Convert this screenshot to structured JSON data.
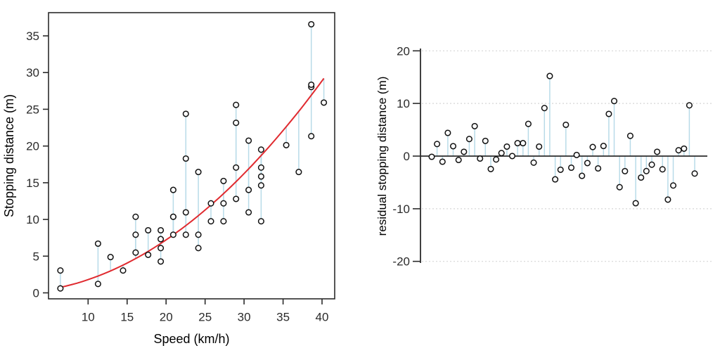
{
  "figure": {
    "description": "Two-panel statistical graphic: stopping distance vs speed with quadratic fit and residual segments (left), residuals by observation (right)",
    "background": "#ffffff"
  },
  "colors": {
    "ink": "#2b2b2b",
    "marker_stroke": "#111111",
    "marker_fill": "#ffffff",
    "fit_curve": "#e02a2f",
    "residual_segment": "#b8dbe8",
    "gridline": "#d6d6d6"
  },
  "chart_data": [
    {
      "id": "fit-panel",
      "type": "scatter",
      "title": "",
      "xlabel": "Speed (km/h)",
      "ylabel": "Stopping distance (m)",
      "x_ticks": [
        10,
        15,
        20,
        25,
        30,
        35,
        40
      ],
      "y_ticks": [
        0,
        5,
        10,
        15,
        20,
        25,
        30,
        35
      ],
      "xlim": [
        4.92,
        41.62
      ],
      "ylim": [
        -0.81,
        38.16
      ],
      "grid": false,
      "legend": "none",
      "marker": "open-circle",
      "fit_curve": {
        "type": "quadratic-through-origin",
        "formula": "y = 0.018049 * x^2",
        "coef": 0.018049,
        "x_start": 6.44,
        "x_end": 40.23
      },
      "residual_segments": true,
      "points": [
        [
          6.44,
          0.61
        ],
        [
          6.44,
          3.05
        ],
        [
          11.27,
          1.22
        ],
        [
          11.27,
          6.71
        ],
        [
          12.87,
          4.88
        ],
        [
          14.48,
          3.05
        ],
        [
          16.09,
          5.49
        ],
        [
          16.09,
          7.92
        ],
        [
          16.09,
          10.36
        ],
        [
          17.7,
          5.18
        ],
        [
          17.7,
          8.53
        ],
        [
          19.31,
          4.27
        ],
        [
          19.31,
          6.1
        ],
        [
          19.31,
          7.32
        ],
        [
          19.31,
          8.53
        ],
        [
          20.92,
          7.92
        ],
        [
          20.92,
          10.36
        ],
        [
          20.92,
          10.36
        ],
        [
          20.92,
          14.02
        ],
        [
          22.53,
          7.92
        ],
        [
          22.53,
          10.97
        ],
        [
          22.53,
          18.29
        ],
        [
          22.53,
          24.38
        ],
        [
          24.14,
          6.1
        ],
        [
          24.14,
          7.92
        ],
        [
          24.14,
          16.46
        ],
        [
          25.75,
          9.75
        ],
        [
          25.75,
          12.19
        ],
        [
          27.36,
          9.75
        ],
        [
          27.36,
          12.19
        ],
        [
          27.36,
          15.24
        ],
        [
          28.97,
          12.8
        ],
        [
          28.97,
          17.07
        ],
        [
          28.97,
          23.16
        ],
        [
          28.97,
          25.6
        ],
        [
          30.58,
          10.97
        ],
        [
          30.58,
          14.02
        ],
        [
          30.58,
          20.73
        ],
        [
          32.19,
          9.75
        ],
        [
          32.19,
          14.63
        ],
        [
          32.19,
          15.85
        ],
        [
          32.19,
          17.07
        ],
        [
          32.19,
          19.51
        ],
        [
          35.41,
          20.12
        ],
        [
          37.01,
          16.46
        ],
        [
          38.62,
          21.34
        ],
        [
          38.62,
          28.04
        ],
        [
          38.62,
          28.35
        ],
        [
          38.62,
          36.58
        ],
        [
          40.23,
          25.91
        ]
      ]
    },
    {
      "id": "residual-panel",
      "type": "stem",
      "title": "",
      "xlabel": "",
      "ylabel": "residual stopping distance (m)",
      "y_ticks": [
        -20,
        -10,
        0,
        10,
        20
      ],
      "ylim": [
        -21.5,
        20.3
      ],
      "x_axis": "observation index 1-50, unlabeled",
      "grid": "horizontal dashed at -20, -10, 10, 20",
      "zero_line": true,
      "marker": "open-circle",
      "values": [
        -0.14,
        2.3,
        -1.07,
        4.41,
        1.88,
        -0.74,
        0.81,
        3.25,
        5.69,
        -0.47,
        2.88,
        -2.46,
        -0.64,
        0.58,
        1.8,
        0.02,
        2.46,
        2.46,
        6.12,
        -1.24,
        1.81,
        9.13,
        15.22,
        -4.42,
        -2.59,
        5.94,
        -2.21,
        0.22,
        -3.76,
        -1.32,
        1.73,
        -2.34,
        1.92,
        8.02,
        10.46,
        -5.9,
        -2.86,
        3.85,
        -8.95,
        -4.07,
        -2.85,
        -1.63,
        0.81,
        -2.51,
        -8.27,
        -5.59,
        1.11,
        1.42,
        9.65,
        -3.31
      ]
    }
  ]
}
